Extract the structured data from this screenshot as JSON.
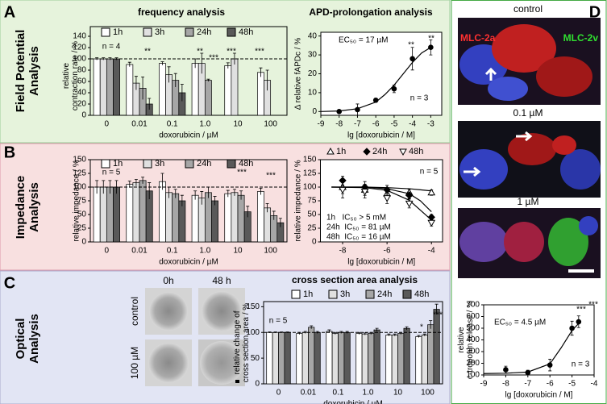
{
  "panels": [
    {
      "letter": "A",
      "section": [
        "Field Potential",
        "Analysis"
      ]
    },
    {
      "letter": "B",
      "section": [
        "Impedance",
        "Analysis"
      ]
    },
    {
      "letter": "C",
      "section": [
        "Optical",
        "Analysis"
      ]
    },
    {
      "letter": "D"
    }
  ],
  "images": {
    "c": {
      "columns": [
        "0h",
        "48 h"
      ],
      "rows": [
        "control",
        "100 µM"
      ]
    },
    "d": {
      "panels": [
        "control",
        "0.1 µM",
        "1 µM"
      ],
      "stains": [
        "MLC-2a",
        "MLC-2v"
      ]
    }
  },
  "chart_data": [
    {
      "type": "bar",
      "title": "frequency analysis",
      "categories": [
        "0",
        "0.01",
        "0.1",
        "1.0",
        "10",
        "100"
      ],
      "xlabel": "doxorubicin / µM",
      "ylabel": [
        "relative",
        "contraction rate / %"
      ],
      "ylim": [
        0,
        140
      ],
      "yticks": [
        0,
        20,
        40,
        60,
        80,
        100,
        120,
        140
      ],
      "reference_line": 100,
      "series": [
        {
          "name": "1h",
          "color": "#ffffff",
          "values": [
            100,
            90,
            92,
            92,
            88,
            76
          ],
          "errors": [
            2,
            4,
            3,
            8,
            5,
            8
          ]
        },
        {
          "name": "3h",
          "color": "#e0e0e0",
          "values": [
            100,
            57,
            72,
            92,
            100,
            62
          ],
          "errors": [
            2,
            12,
            14,
            18,
            10,
            18
          ]
        },
        {
          "name": "24h",
          "color": "#a6a6a6",
          "values": [
            100,
            48,
            62,
            62,
            null,
            null
          ],
          "errors": [
            2,
            20,
            12,
            2,
            null,
            null
          ]
        },
        {
          "name": "48h",
          "color": "#595959",
          "values": [
            100,
            20,
            40,
            null,
            null,
            null
          ],
          "errors": [
            2,
            10,
            15,
            null,
            null,
            null
          ]
        }
      ],
      "annotations": [
        "n = 4",
        "**",
        "**",
        "***",
        "***",
        "***"
      ]
    },
    {
      "type": "scatter",
      "title": "APD-prolongation analysis",
      "xlabel": "lg [doxorubicin / M]",
      "ylabel": [
        "Δ relative fAPDc / %"
      ],
      "xlim": [
        -9,
        -2.4
      ],
      "xticks": [
        -9,
        -8,
        -7,
        -6,
        -5,
        -4,
        -3
      ],
      "ylim": [
        -2,
        42
      ],
      "yticks": [
        0,
        10,
        20,
        30,
        40
      ],
      "series": [
        {
          "color": "#000000",
          "marker": "circle",
          "filled": true,
          "x": [
            -8,
            -7,
            -6,
            -5,
            -4,
            -3
          ],
          "values": [
            0,
            1,
            6,
            12,
            28,
            34
          ],
          "errors": [
            0.5,
            3,
            1,
            2,
            6,
            4
          ],
          "fit_x": [
            -9,
            -8,
            -7,
            -6,
            -5.5,
            -5,
            -4.5,
            -4,
            -3.5,
            -3
          ],
          "fit_y": [
            0,
            0.3,
            1.5,
            5,
            9,
            14,
            20,
            26,
            31,
            34
          ]
        }
      ],
      "annotations": [
        "EC₅₀ = 17 µM",
        "**",
        "**",
        "n = 3"
      ]
    },
    {
      "type": "bar",
      "categories": [
        "0",
        "0.01",
        "0.1",
        "1.0",
        "10",
        "100"
      ],
      "xlabel": "doxorubicin / µM",
      "ylabel": [
        "relative impedance / %"
      ],
      "ylim": [
        0,
        150
      ],
      "yticks": [
        0,
        25,
        50,
        75,
        100,
        125,
        150
      ],
      "reference_line": 100,
      "series": [
        {
          "name": "1h",
          "color": "#ffffff",
          "values": [
            100,
            105,
            110,
            85,
            88,
            92
          ],
          "errors": [
            12,
            6,
            15,
            8,
            6,
            6
          ]
        },
        {
          "name": "3h",
          "color": "#e0e0e0",
          "values": [
            100,
            108,
            90,
            80,
            90,
            62
          ],
          "errors": [
            12,
            6,
            10,
            12,
            6,
            8
          ]
        },
        {
          "name": "24h",
          "color": "#a6a6a6",
          "values": [
            100,
            112,
            88,
            90,
            85,
            48
          ],
          "errors": [
            12,
            6,
            8,
            10,
            8,
            8
          ]
        },
        {
          "name": "48h",
          "color": "#595959",
          "values": [
            100,
            93,
            75,
            75,
            55,
            35
          ],
          "errors": [
            12,
            15,
            10,
            8,
            10,
            8
          ]
        }
      ],
      "annotations": [
        "n = 5",
        "***",
        "***"
      ]
    },
    {
      "type": "scatter",
      "xlabel": "lg [doxorubicin / M]",
      "ylabel": [
        "relative impedance / %"
      ],
      "xlim": [
        -9,
        -3.5
      ],
      "xticks": [
        -8,
        -6,
        -4
      ],
      "ylim": [
        0,
        150
      ],
      "yticks": [
        0,
        25,
        50,
        75,
        100,
        125,
        150
      ],
      "series": [
        {
          "name": "1h",
          "color": "#000000",
          "marker": "triangle-up",
          "filled": false,
          "x": [
            -8,
            -7,
            -6,
            -5,
            -4
          ],
          "values": [
            100,
            95,
            88,
            90,
            90
          ],
          "errors": [
            12,
            10,
            8,
            6,
            5
          ],
          "fit_x": [
            -8.5,
            -7,
            -6,
            -5,
            -4.5,
            -4
          ],
          "fit_y": [
            100,
            100,
            99,
            97,
            95,
            93
          ]
        },
        {
          "name": "24h",
          "color": "#000000",
          "marker": "diamond",
          "filled": true,
          "x": [
            -8,
            -7,
            -6,
            -5,
            -4
          ],
          "values": [
            112,
            100,
            95,
            85,
            45
          ],
          "errors": [
            8,
            10,
            8,
            6,
            5
          ],
          "fit_x": [
            -8.5,
            -7,
            -6,
            -5,
            -4.5,
            -4
          ],
          "fit_y": [
            100,
            100,
            97,
            88,
            75,
            55
          ]
        },
        {
          "name": "48h",
          "color": "#000000",
          "marker": "triangle-down",
          "filled": false,
          "x": [
            -8,
            -7,
            -6,
            -5,
            -4
          ],
          "values": [
            95,
            92,
            80,
            70,
            35
          ],
          "errors": [
            15,
            12,
            10,
            8,
            6
          ],
          "fit_x": [
            -8.5,
            -7,
            -6,
            -5,
            -4.5,
            -4
          ],
          "fit_y": [
            100,
            99,
            94,
            76,
            58,
            40
          ]
        }
      ],
      "annotations": [
        "n = 5",
        "1h   IC₅₀ > 5 mM",
        "24h  IC₅₀ = 81 µM",
        "48h  IC₅₀ = 16 µM"
      ]
    },
    {
      "type": "bar",
      "title": "cross section area analysis",
      "categories": [
        "0",
        "0.01",
        "0.1",
        "1.0",
        "10",
        "100"
      ],
      "xlabel": "doxorubicin / µM",
      "ylabel": [
        "relative change of",
        "cross section area / %"
      ],
      "ylim": [
        0,
        160
      ],
      "yticks": [
        0,
        50,
        100,
        150
      ],
      "reference_line": 100,
      "series": [
        {
          "name": "1h",
          "color": "#ffffff",
          "values": [
            100,
            98,
            102,
            98,
            95,
            92
          ],
          "errors": [
            1,
            2,
            3,
            2,
            2,
            2
          ]
        },
        {
          "name": "3h",
          "color": "#e0e0e0",
          "values": [
            100,
            100,
            98,
            97,
            95,
            95
          ],
          "errors": [
            1,
            2,
            2,
            2,
            2,
            2
          ]
        },
        {
          "name": "24h",
          "color": "#a6a6a6",
          "values": [
            100,
            110,
            100,
            98,
            98,
            115
          ],
          "errors": [
            1,
            3,
            2,
            2,
            2,
            8
          ]
        },
        {
          "name": "48h",
          "color": "#595959",
          "values": [
            100,
            100,
            100,
            105,
            108,
            145
          ],
          "errors": [
            1,
            2,
            2,
            3,
            3,
            10
          ]
        }
      ],
      "annotations": [
        "n = 5",
        "*",
        "***"
      ]
    },
    {
      "type": "scatter",
      "xlabel": "lg [doxorubicin / M]",
      "ylabel": [
        "relative",
        "c-troponin release / %"
      ],
      "xlim": [
        -9,
        -4
      ],
      "xticks": [
        -9,
        -8,
        -7,
        -6,
        -5,
        -4
      ],
      "ylim": [
        100,
        700
      ],
      "yticks": [
        100,
        200,
        300,
        400,
        500,
        600,
        700
      ],
      "series": [
        {
          "color": "#000000",
          "marker": "circle",
          "filled": true,
          "x": [
            -8,
            -7,
            -6,
            -5,
            -4.7
          ],
          "values": [
            145,
            120,
            185,
            500,
            555
          ],
          "errors": [
            30,
            20,
            50,
            60,
            50
          ],
          "fit_x": [
            -9,
            -8,
            -7,
            -6,
            -5.5,
            -5,
            -4.7
          ],
          "fit_y": [
            112,
            115,
            125,
            195,
            330,
            480,
            540
          ]
        }
      ],
      "annotations": [
        "EC₅₀ = 4.5 µM",
        "***",
        "***",
        "n = 3"
      ]
    }
  ]
}
